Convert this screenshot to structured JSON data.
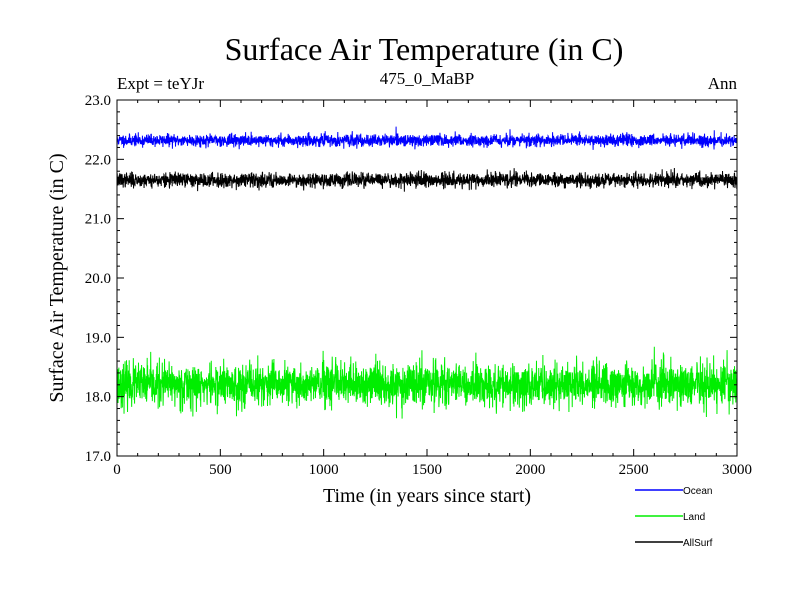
{
  "chart_data": {
    "type": "line",
    "title": "Surface Air Temperature (in C)",
    "subtitle_left": "Expt = teYJr",
    "subtitle_center": "475_0_MaBP",
    "subtitle_right": "Ann",
    "xlabel": "Time (in years since start)",
    "ylabel": "Surface Air Temperature (in C)",
    "xlim": [
      0,
      3000
    ],
    "ylim": [
      17.0,
      23.0
    ],
    "xticks": [
      0,
      500,
      1000,
      1500,
      2000,
      2500,
      3000
    ],
    "yticks": [
      "17.0",
      "18.0",
      "19.0",
      "20.0",
      "21.0",
      "22.0",
      "23.0"
    ],
    "series": [
      {
        "name": "Ocean",
        "color": "#0000ff",
        "mean": 22.32,
        "noise": 0.05,
        "n": 3000,
        "seed": 11
      },
      {
        "name": "Land",
        "color": "#00ee00",
        "mean": 18.2,
        "noise": 0.18,
        "n": 3000,
        "seed": 23
      },
      {
        "name": "AllSurf",
        "color": "#000000",
        "mean": 21.65,
        "noise": 0.06,
        "n": 3000,
        "seed": 37
      }
    ]
  }
}
